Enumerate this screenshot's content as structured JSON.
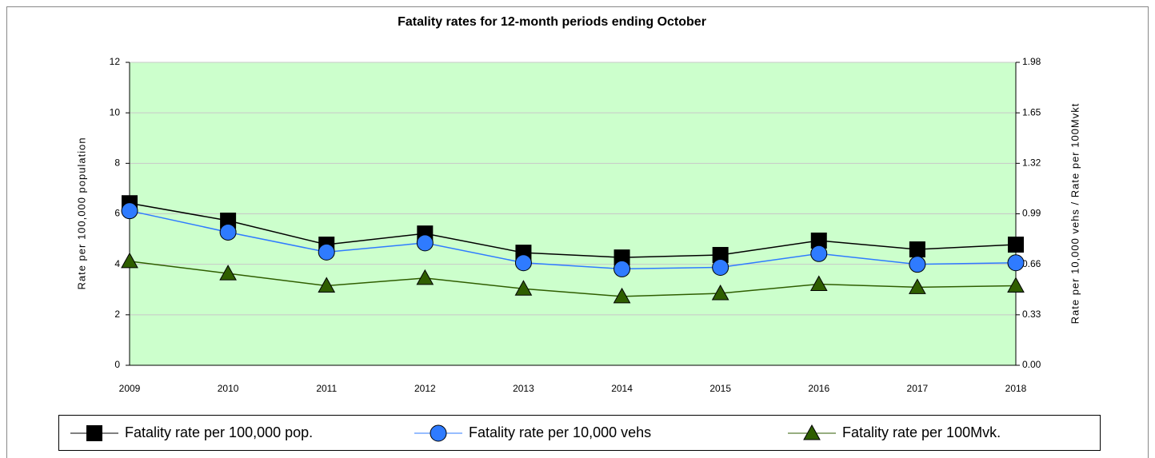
{
  "chart_data": {
    "type": "line",
    "title": "Fatality rates for 12-month periods ending October",
    "categories": [
      "2009",
      "2010",
      "2011",
      "2012",
      "2013",
      "2014",
      "2015",
      "2016",
      "2017",
      "2018"
    ],
    "ylabel": "Rate per 100,000 population",
    "y2label": "Rate per 10,000 vehs / Rate per 100Mvkt",
    "ylim": [
      0,
      12
    ],
    "yticks": [
      0,
      2,
      4,
      6,
      8,
      10,
      12
    ],
    "y2lim": [
      0,
      1.98
    ],
    "y2ticks": [
      {
        "value": 0,
        "label": "0.00"
      },
      0.33,
      0.66,
      0.99,
      1.32,
      1.65,
      1.98
    ],
    "grid": true,
    "series": [
      {
        "name": "Fatality rate per 100,000 pop.",
        "color": "#000000",
        "marker": "square",
        "values": [
          6.42,
          5.73,
          4.78,
          5.22,
          4.46,
          4.27,
          4.37,
          4.94,
          4.59,
          4.78
        ]
      },
      {
        "name": "Fatality rate per 10,000 vehs",
        "color": "#2f7bff",
        "marker": "circle",
        "axis": "y2",
        "values": [
          1.01,
          0.87,
          0.74,
          0.8,
          0.67,
          0.63,
          0.64,
          0.73,
          0.66,
          0.67
        ]
      },
      {
        "name": "Fatality rate per 100Mvk.",
        "color": "#2f5e00",
        "marker": "triangle",
        "axis": "y2",
        "values": [
          0.68,
          0.6,
          0.52,
          0.57,
          0.5,
          0.45,
          0.47,
          0.53,
          0.51,
          0.52
        ]
      }
    ]
  }
}
